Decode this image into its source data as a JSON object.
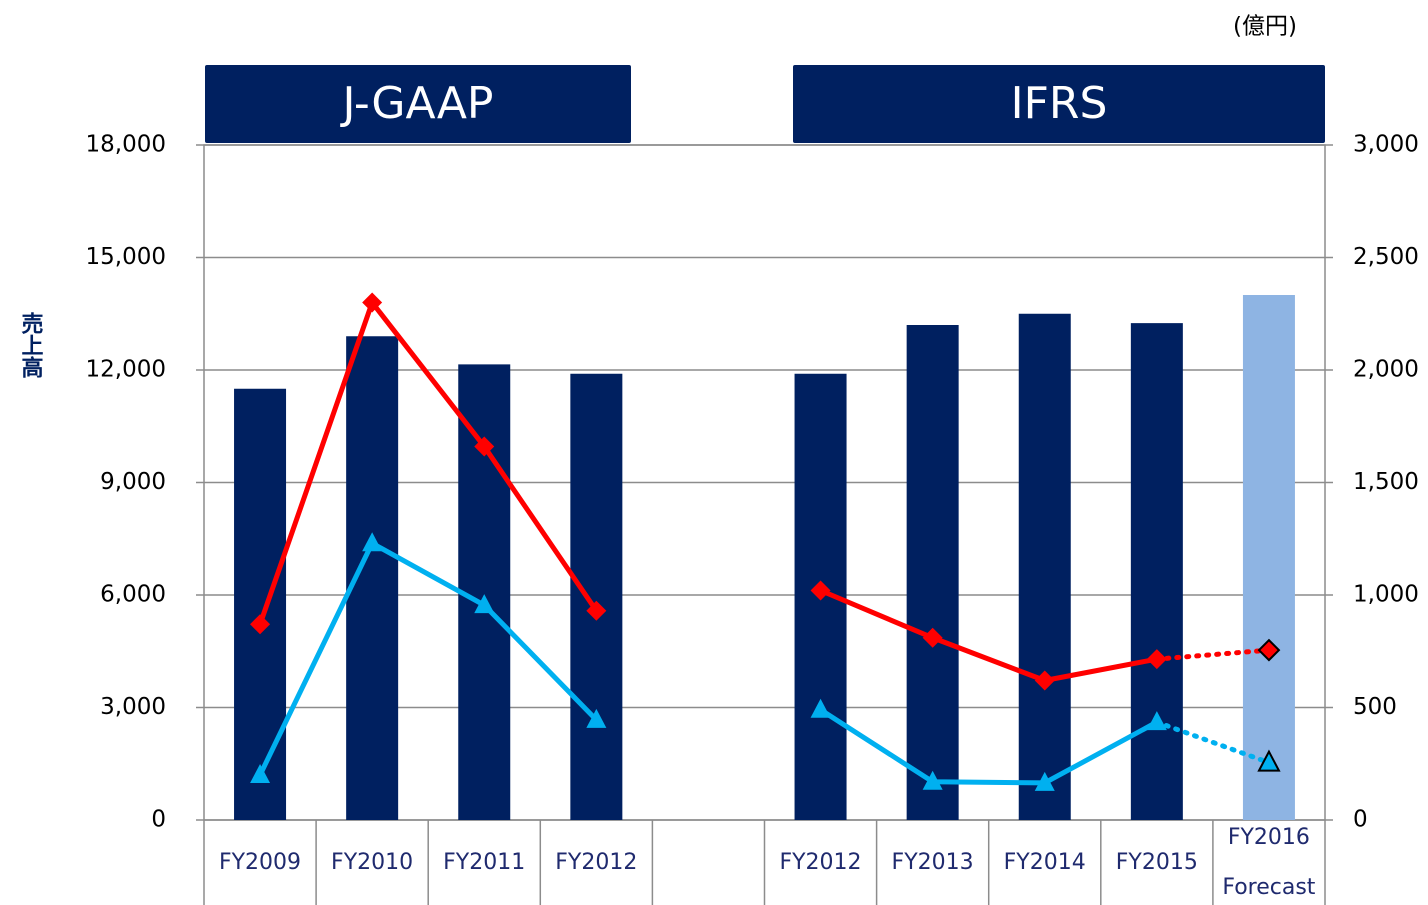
{
  "chart_data": {
    "type": "combo",
    "unit": "(億円)",
    "ylabel": "売上高",
    "annotations": [
      "J-GAAP",
      "IFRS"
    ],
    "categories": [
      "FY2009",
      "FY2010",
      "FY2011",
      "FY2012",
      null,
      "FY2012",
      "FY2013",
      "FY2014",
      "FY2015",
      "FY2016 Forecast"
    ],
    "series": [
      {
        "type": "bar",
        "axis": "y",
        "color": "#002060",
        "colors": [
          "#002060",
          "#002060",
          "#002060",
          "#002060",
          "#002060",
          "#002060",
          "#002060",
          "#002060",
          "#002060",
          "#8eb4e3"
        ],
        "values": [
          11500,
          12900,
          12150,
          11900,
          null,
          11900,
          13200,
          13500,
          13250,
          14000
        ]
      },
      {
        "type": "line",
        "axis": "y2",
        "color": "#ff0000",
        "marker": "diamond",
        "dotted_last": true,
        "values": [
          870,
          2300,
          1660,
          930,
          null,
          1020,
          810,
          620,
          715,
          755
        ]
      },
      {
        "type": "line",
        "axis": "y2",
        "color": "#00b0f0",
        "marker": "triangle",
        "dotted_last": true,
        "values": [
          200,
          1230,
          955,
          445,
          null,
          490,
          170,
          165,
          435,
          255
        ]
      }
    ],
    "ylim": [
      0,
      18000
    ],
    "yticks": [
      0,
      {
        "value": 3000,
        "label": "3,000"
      },
      {
        "value": 6000,
        "label": "6,000"
      },
      {
        "value": 9000,
        "label": "9,000"
      },
      {
        "value": 12000,
        "label": "12,000"
      },
      {
        "value": 15000,
        "label": "15,000"
      },
      {
        "value": 18000,
        "label": "18,000"
      }
    ],
    "y2lim": [
      0,
      3000
    ],
    "y2ticks": [
      0,
      500,
      {
        "value": 1000,
        "label": "1,000"
      },
      {
        "value": 1500,
        "label": "1,500"
      },
      {
        "value": 2000,
        "label": "2,000"
      },
      {
        "value": 2500,
        "label": "2,500"
      },
      {
        "value": 3000,
        "label": "3,000"
      }
    ],
    "grid": true
  }
}
